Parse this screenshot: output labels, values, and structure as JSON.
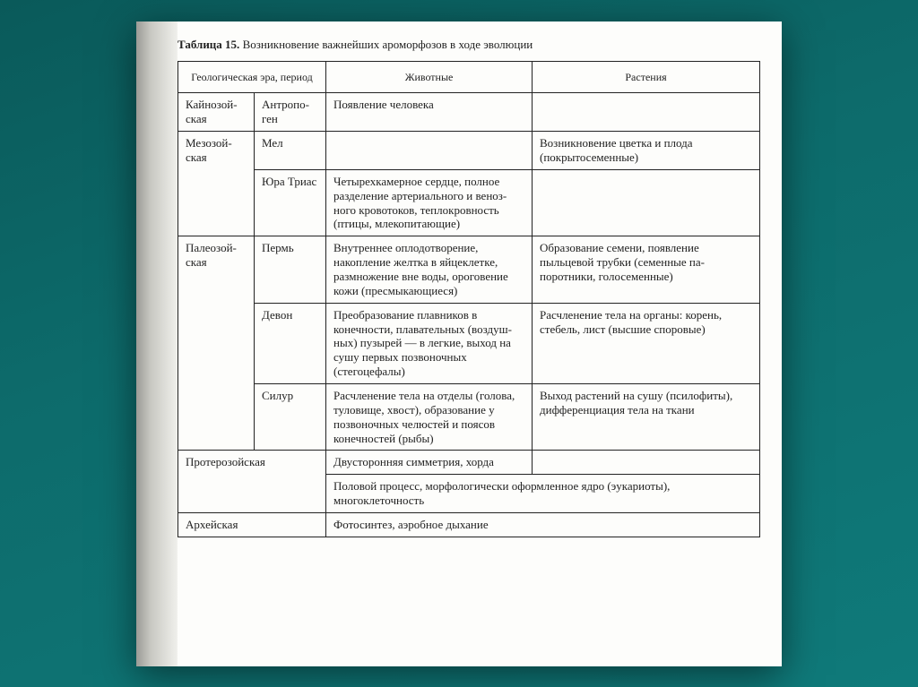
{
  "caption_bold": "Таблица 15.",
  "caption_rest": "Возникновение важнейших ароморфозов в ходе эволюции",
  "head_era": "Геологическая эра, период",
  "head_animals": "Животные",
  "head_plants": "Растения",
  "rows": {
    "r1": {
      "era": "Кайнозой­ская",
      "period": "Антропо­ген",
      "animals": "Появление человека",
      "plants": ""
    },
    "r2": {
      "era": "Мезозой­ская",
      "period": "Мел",
      "animals": "",
      "plants": "Возникновение цветка и плода (покрытосе­менные)"
    },
    "r3": {
      "period": "Юра Триас",
      "animals": "Четырехкамерное серд­це, полное разделение артериального и веноз­ного кровотоков, теп­локровность (птицы, млекопитающие)",
      "plants": ""
    },
    "r4": {
      "era": "Палеозой­ская",
      "period": "Пермь",
      "animals": "Внутреннее оплодотво­рение, накопление желтка в яйцеклетке, размножение вне воды, ороговение кожи (пресмыкающиеся)",
      "plants": "Образование семени, появление пыльцевой трубки (семенные па­поротники, голосемен­ные)"
    },
    "r5": {
      "period": "Девон",
      "animals": "Преобразование плав­ников в конечности, плавательных (воздуш­ных) пузырей — в лег­кие, выход на сушу первых позвоночных (стегоцефалы)",
      "plants": "Расчленение тела на органы: корень, стебель, лист (высшие споровые)"
    },
    "r6": {
      "period": "Силур",
      "animals": "Расчленение тела на отделы (голова, тулови­ще, хвост), образование у позвоночных челюс­тей и поясов конечнос­тей (рыбы)",
      "plants": "Выход растений на су­шу (псилофиты), диф­ференциация тела на ткани"
    },
    "r7": {
      "era": "Протерозойская",
      "top": "Двусторонняя симмет­рия, хорда",
      "bottom": "Половой процесс, морфологически оформлен­ное ядро (эукариоты), многоклеточность"
    },
    "r8": {
      "era": "Архейская",
      "content": "Фотосинтез, аэробное дыхание"
    }
  }
}
